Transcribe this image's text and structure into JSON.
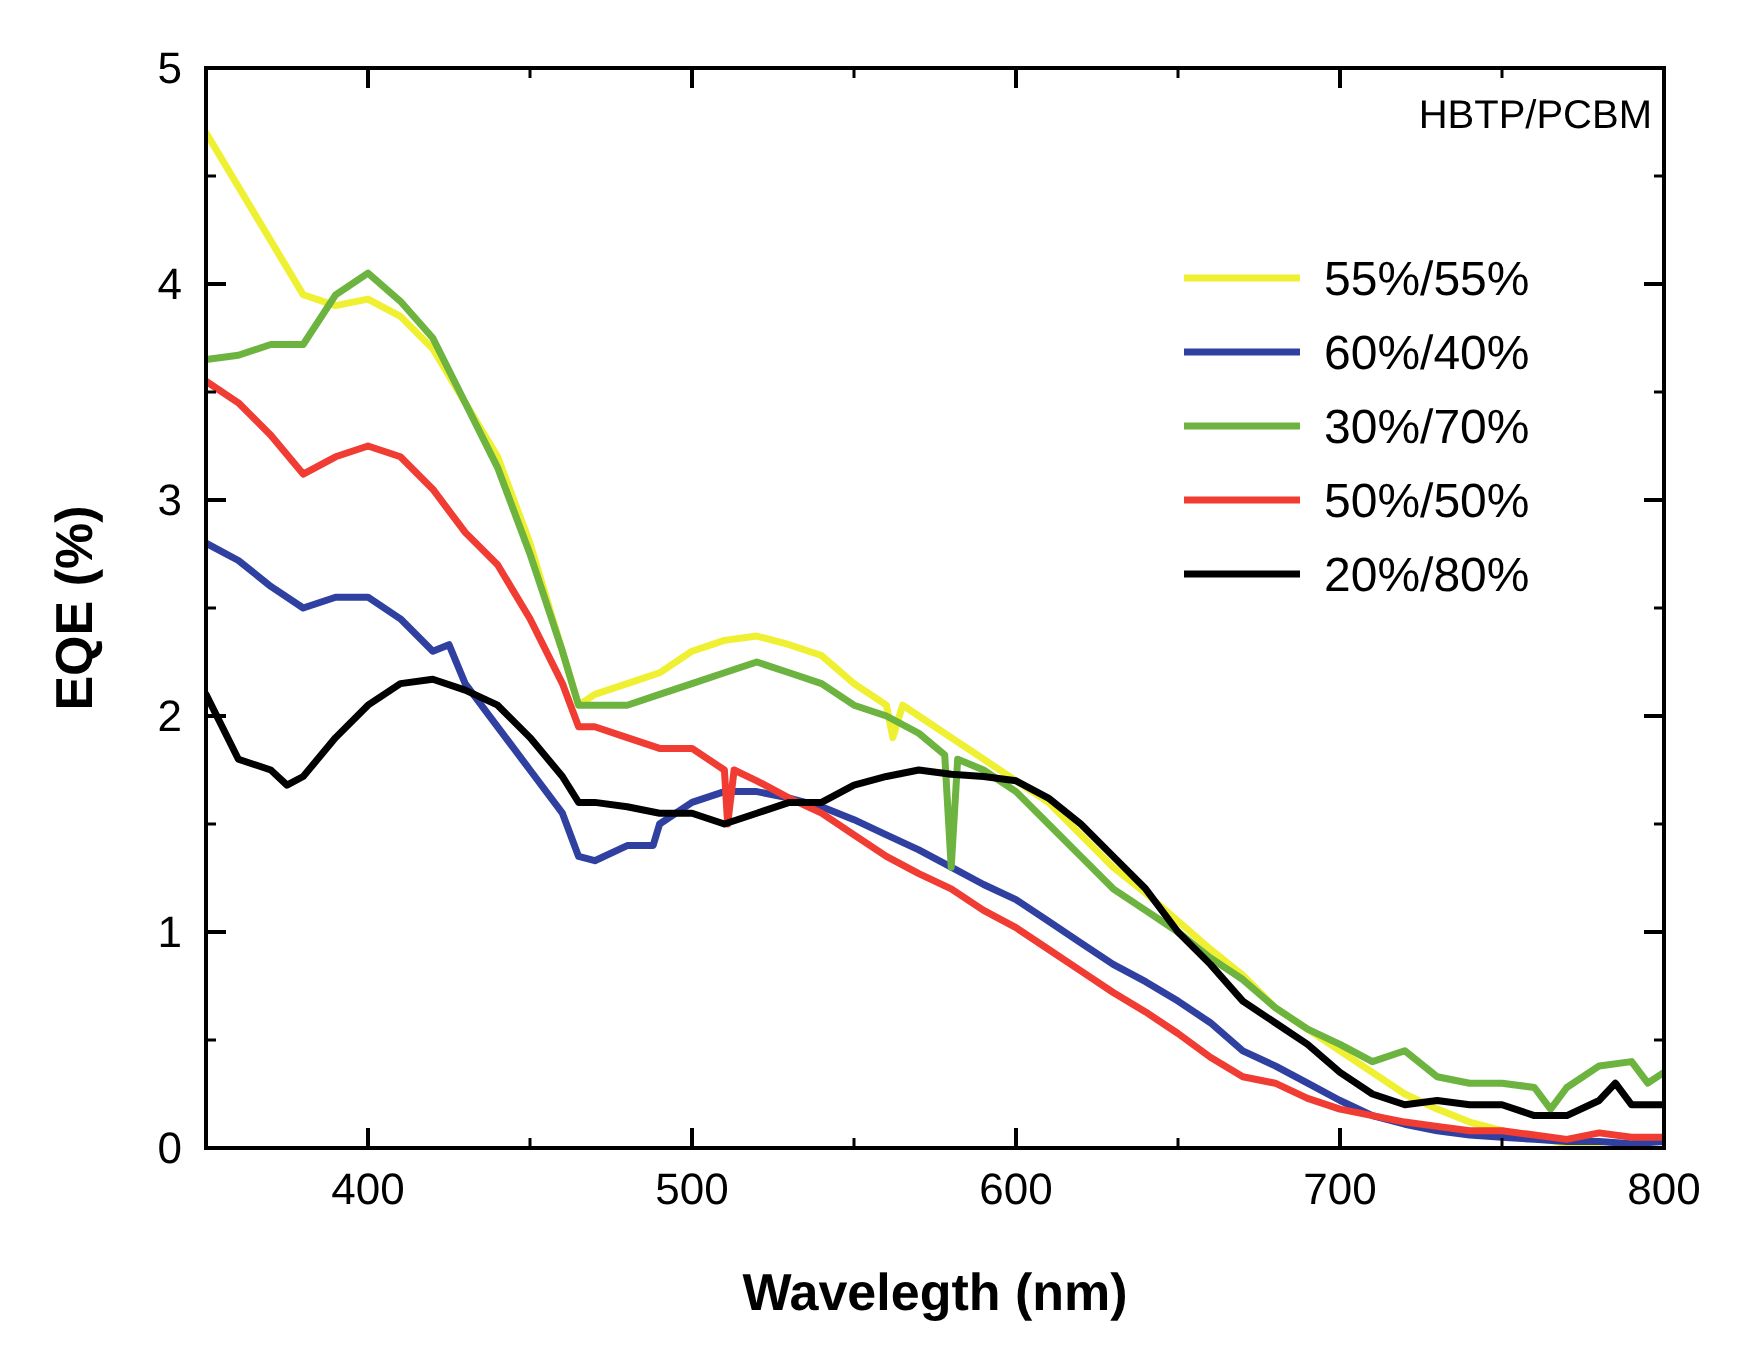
{
  "chart_data": {
    "type": "line",
    "xlabel": "Wavelegth (nm)",
    "ylabel": "EQE (%)",
    "xlim": [
      350,
      800
    ],
    "ylim": [
      0,
      5
    ],
    "xticks": [
      400,
      500,
      600,
      700,
      800
    ],
    "yticks": [
      0,
      1,
      2,
      3,
      4,
      5
    ],
    "legend": "top right",
    "annotations": [
      "HBTP/PCBM"
    ],
    "series": [
      {
        "name": "55%/55%",
        "color": "#f0f032",
        "x": [
          350,
          360,
          370,
          380,
          390,
          400,
          410,
          420,
          430,
          440,
          450,
          460,
          465,
          470,
          480,
          490,
          500,
          510,
          520,
          530,
          540,
          550,
          560,
          562,
          565,
          570,
          580,
          590,
          600,
          610,
          620,
          630,
          640,
          650,
          660,
          670,
          680,
          690,
          700,
          710,
          720,
          730,
          740,
          750,
          760,
          770,
          780
        ],
        "values": [
          4.7,
          4.45,
          4.2,
          3.95,
          3.9,
          3.93,
          3.85,
          3.7,
          3.45,
          3.2,
          2.8,
          2.3,
          2.05,
          2.1,
          2.15,
          2.2,
          2.3,
          2.35,
          2.37,
          2.33,
          2.28,
          2.15,
          2.05,
          1.9,
          2.05,
          2.0,
          1.9,
          1.8,
          1.7,
          1.6,
          1.45,
          1.3,
          1.18,
          1.05,
          0.92,
          0.8,
          0.65,
          0.55,
          0.45,
          0.35,
          0.25,
          0.18,
          0.12,
          0.08,
          0.05,
          0.02,
          0.0
        ]
      },
      {
        "name": "60%/40%",
        "color": "#3040a0",
        "x": [
          350,
          360,
          370,
          380,
          390,
          400,
          410,
          420,
          425,
          430,
          440,
          450,
          460,
          465,
          470,
          480,
          488,
          490,
          500,
          510,
          520,
          530,
          540,
          550,
          560,
          570,
          580,
          590,
          600,
          610,
          620,
          630,
          640,
          650,
          660,
          670,
          680,
          690,
          700,
          710,
          720,
          730,
          740,
          750,
          760,
          770,
          780,
          790,
          800
        ],
        "values": [
          2.8,
          2.72,
          2.6,
          2.5,
          2.55,
          2.55,
          2.45,
          2.3,
          2.33,
          2.15,
          1.95,
          1.75,
          1.55,
          1.35,
          1.33,
          1.4,
          1.4,
          1.5,
          1.6,
          1.65,
          1.65,
          1.62,
          1.58,
          1.52,
          1.45,
          1.38,
          1.3,
          1.22,
          1.15,
          1.05,
          0.95,
          0.85,
          0.77,
          0.68,
          0.58,
          0.45,
          0.38,
          0.3,
          0.22,
          0.15,
          0.11,
          0.08,
          0.06,
          0.05,
          0.04,
          0.03,
          0.03,
          0.02,
          0.03
        ]
      },
      {
        "name": "30%/70%",
        "color": "#6db33f",
        "x": [
          350,
          360,
          370,
          380,
          390,
          400,
          410,
          420,
          430,
          440,
          450,
          460,
          465,
          470,
          480,
          490,
          500,
          510,
          520,
          530,
          540,
          550,
          560,
          570,
          578,
          580,
          582,
          590,
          600,
          610,
          620,
          630,
          640,
          650,
          660,
          670,
          680,
          690,
          700,
          710,
          720,
          730,
          740,
          750,
          760,
          765,
          770,
          780,
          790,
          795,
          800
        ],
        "values": [
          3.65,
          3.67,
          3.72,
          3.72,
          3.95,
          4.05,
          3.92,
          3.75,
          3.45,
          3.15,
          2.75,
          2.3,
          2.05,
          2.05,
          2.05,
          2.1,
          2.15,
          2.2,
          2.25,
          2.2,
          2.15,
          2.05,
          2.0,
          1.92,
          1.82,
          1.3,
          1.8,
          1.75,
          1.65,
          1.5,
          1.35,
          1.2,
          1.1,
          1.0,
          0.88,
          0.78,
          0.65,
          0.55,
          0.48,
          0.4,
          0.45,
          0.33,
          0.3,
          0.3,
          0.28,
          0.18,
          0.28,
          0.38,
          0.4,
          0.3,
          0.35
        ]
      },
      {
        "name": "50%/50%",
        "color": "#f03c32",
        "x": [
          350,
          360,
          370,
          380,
          390,
          400,
          410,
          420,
          430,
          440,
          450,
          460,
          465,
          470,
          480,
          490,
          500,
          510,
          511,
          513,
          520,
          530,
          540,
          550,
          560,
          570,
          580,
          590,
          600,
          610,
          620,
          630,
          640,
          650,
          660,
          670,
          680,
          690,
          700,
          710,
          720,
          730,
          740,
          750,
          760,
          770,
          780,
          790,
          800
        ],
        "values": [
          3.55,
          3.45,
          3.3,
          3.12,
          3.2,
          3.25,
          3.2,
          3.05,
          2.85,
          2.7,
          2.45,
          2.15,
          1.95,
          1.95,
          1.9,
          1.85,
          1.85,
          1.75,
          1.5,
          1.75,
          1.7,
          1.62,
          1.55,
          1.45,
          1.35,
          1.27,
          1.2,
          1.1,
          1.02,
          0.92,
          0.82,
          0.72,
          0.63,
          0.53,
          0.42,
          0.33,
          0.3,
          0.23,
          0.18,
          0.15,
          0.12,
          0.1,
          0.08,
          0.08,
          0.06,
          0.04,
          0.07,
          0.05,
          0.05
        ]
      },
      {
        "name": "20%/80%",
        "color": "#000000",
        "x": [
          350,
          355,
          360,
          370,
          375,
          380,
          390,
          400,
          410,
          420,
          430,
          440,
          450,
          460,
          465,
          470,
          480,
          490,
          500,
          510,
          520,
          530,
          540,
          550,
          560,
          570,
          580,
          590,
          600,
          610,
          620,
          630,
          640,
          650,
          660,
          670,
          680,
          690,
          700,
          710,
          720,
          730,
          740,
          750,
          760,
          770,
          780,
          785,
          790,
          800
        ],
        "values": [
          2.1,
          1.95,
          1.8,
          1.75,
          1.68,
          1.72,
          1.9,
          2.05,
          2.15,
          2.17,
          2.12,
          2.05,
          1.9,
          1.72,
          1.6,
          1.6,
          1.58,
          1.55,
          1.55,
          1.5,
          1.55,
          1.6,
          1.6,
          1.68,
          1.72,
          1.75,
          1.73,
          1.72,
          1.7,
          1.62,
          1.5,
          1.35,
          1.2,
          1.0,
          0.85,
          0.68,
          0.58,
          0.48,
          0.35,
          0.25,
          0.2,
          0.22,
          0.2,
          0.2,
          0.15,
          0.15,
          0.22,
          0.3,
          0.2,
          0.2
        ]
      }
    ]
  }
}
